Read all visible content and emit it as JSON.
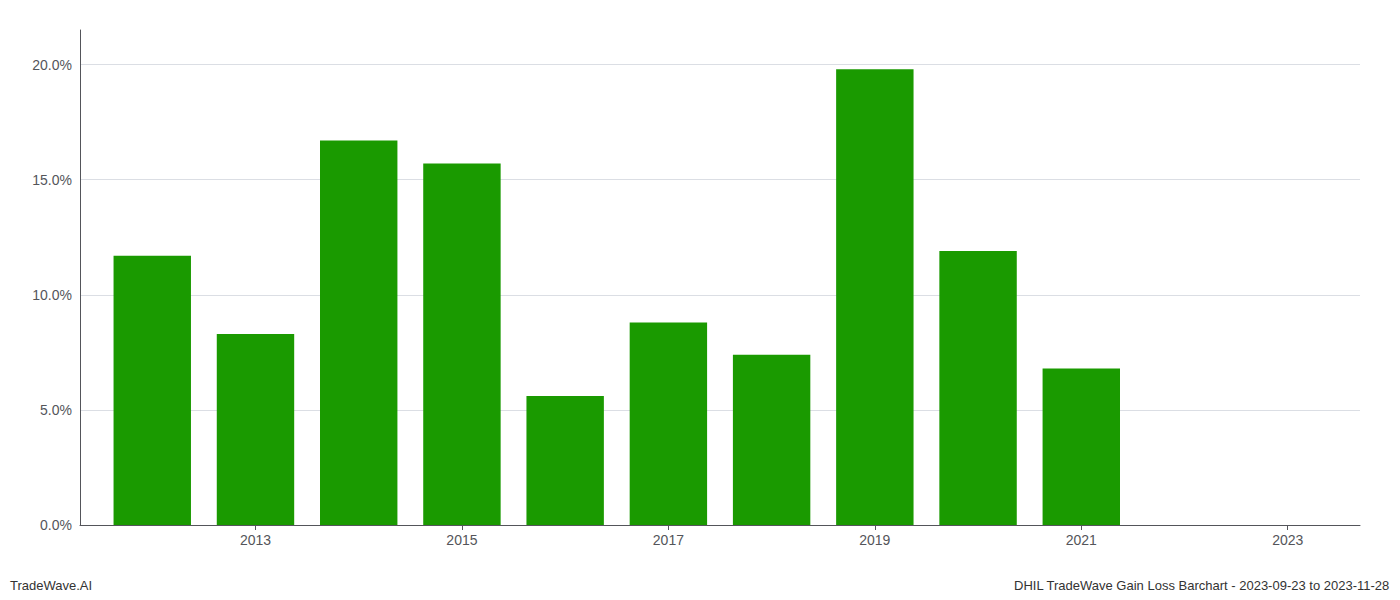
{
  "chart_data": {
    "type": "bar",
    "x": [
      2012,
      2013,
      2014,
      2015,
      2016,
      2017,
      2018,
      2019,
      2020,
      2021,
      2022
    ],
    "values": [
      0.117,
      0.083,
      0.167,
      0.157,
      0.056,
      0.088,
      0.074,
      0.198,
      0.119,
      0.068,
      0.0
    ],
    "color": "#1a9a00",
    "xlim": [
      2011.3,
      2023.7
    ],
    "xticks": [
      2013,
      2015,
      2017,
      2019,
      2021,
      2023
    ],
    "ylim": [
      0.0,
      0.215
    ],
    "yticks": [
      {
        "value": 0.0,
        "label": "0.0%"
      },
      {
        "value": 0.05,
        "label": "5.0%"
      },
      {
        "value": 0.1,
        "label": "10.0%"
      },
      {
        "value": 0.15,
        "label": "15.0%"
      },
      {
        "value": 0.2,
        "label": "20.0%"
      }
    ],
    "grid": true,
    "annotations": [
      "TradeWave.AI",
      "DHIL TradeWave Gain Loss Barchart - 2023-09-23 to 2023-11-28"
    ]
  }
}
